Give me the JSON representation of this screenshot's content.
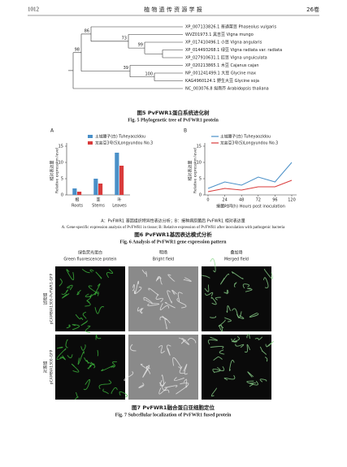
{
  "header": {
    "page": "1012",
    "journal": "植 物 遗 传 资 源 学 报",
    "volume": "26卷"
  },
  "fig5": {
    "leaves": [
      "XP_007133826.1 普通菜豆 Phaseolus vulgaris",
      "WVZ01973.1 黑吉豆 Vigna mungo",
      "XP_017410496.1 小豆 Vigna angularis",
      "XP_014493268.1 绿豆 Vigna radiata var. radiata",
      "XP_027910631.1 豇豆 Vigna unguiculata",
      "XP_020213865.1 木豆 Cajanus cajan",
      "NP_001241499.1 大豆 Glycine max",
      "KAG4960124.1 野生大豆 Glycine soja",
      "NC_003076.8 拟南芥 Arabidopsis thaliana"
    ],
    "bootstrap": [
      86,
      73,
      99,
      98,
      39,
      100
    ],
    "caption_cn": "图5 PvFWR1蛋白系统进化树",
    "caption_en": "Fig. 5 Phylogenetic tree of PvFWR1 protein"
  },
  "fig6": {
    "panels": [
      {
        "type": "bar",
        "label": "A",
        "ylabel_cn": "相对表达量",
        "ylabel_en": "Relative expression level",
        "categories_cn": [
          "根",
          "茎",
          "叶"
        ],
        "categories_en": [
          "Roots",
          "Stems",
          "Leaves"
        ],
        "ylim": [
          0,
          15
        ],
        "yticks": [
          0,
          5,
          10,
          15
        ],
        "series": [
          {
            "name": "土城腰子(白) Tuheyaozidou",
            "color": "#4a90c8",
            "values": [
              2,
              5,
              13
            ]
          },
          {
            "name": "龙芸豆3号(S)Longyundou No.3",
            "color": "#d93b3b",
            "values": [
              1,
              3.5,
              9
            ]
          }
        ]
      },
      {
        "type": "line",
        "label": "B",
        "ylabel_cn": "相对表达量",
        "ylabel_en": "Relative expression level",
        "xlabel": "接菌时间(h) Hours post inoculation",
        "x": [
          0,
          24,
          48,
          72,
          96,
          120
        ],
        "xlim": [
          0,
          120
        ],
        "ylim": [
          0,
          15
        ],
        "yticks": [
          0,
          5,
          10,
          15
        ],
        "series": [
          {
            "name": "土城腰子(白) Tuheyaozidou",
            "color": "#4a90c8",
            "values": [
              2,
              4,
              3,
              5.5,
              4,
              10
            ]
          },
          {
            "name": "龙芸豆3号(S)Longyundou No.3",
            "color": "#d93b3b",
            "values": [
              1,
              2,
              1.5,
              2.5,
              2.5,
              4.5
            ]
          }
        ]
      }
    ],
    "note_cn": "A：PvFWR1 基因组织特异性表达分析；B：接种病原菌后 PvFWR1 相对表达量",
    "note_en": "A: Gene-specific expression analysis of PvFWR1 in tissue; B: Relative expression of PvFWR1 after inoculation with pathogenic bacteria",
    "caption_cn": "图6 PvFWR1基因表达模式分析",
    "caption_en": "Fig. 6 Analysis of PvFWR1 gene expression pattern"
  },
  "fig7": {
    "columns": [
      {
        "cn": "绿色荧光蛋白",
        "en": "Green fluorescence protein"
      },
      {
        "cn": "明场",
        "en": "Bright field"
      },
      {
        "cn": "叠加场",
        "en": "Merged field"
      }
    ],
    "rows": [
      {
        "cn": "试验组",
        "en": "pCAMBIA1300-PvFWR1-GFP"
      },
      {
        "cn": "对照组",
        "en": "pCAMBIA1300-GFP"
      }
    ],
    "caption_cn": "图7 PvFWR1融合蛋白亚细胞定位",
    "caption_en": "Fig. 7 Subcellular localization of PvFWR1 fused protein"
  }
}
